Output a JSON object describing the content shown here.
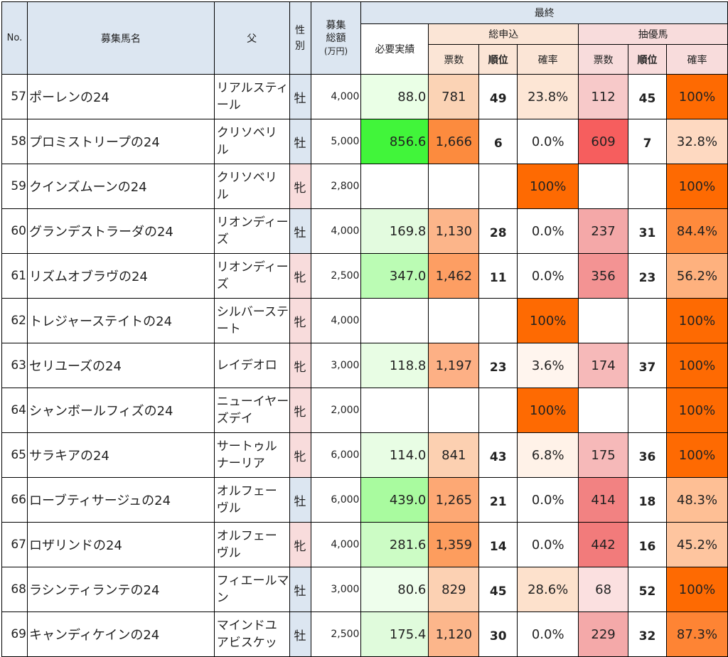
{
  "header": {
    "no": "No.",
    "horse_name": "募集馬名",
    "sire": "父",
    "sex": "性別",
    "total_line1": "募集",
    "total_line2": "総額",
    "total_unit": "(万円)",
    "final": "最終",
    "required": "必要実績",
    "apply_group": "総申込",
    "lottery_group": "抽優馬",
    "votes": "票数",
    "rank": "順位",
    "prob": "確率"
  },
  "rows": [
    {
      "no": "57",
      "name": "ポーレンの24",
      "sire": "リアルスティール",
      "sex": "牡",
      "sex_type": "m",
      "amount": "4,000",
      "required": "88.0",
      "required_bg": "#eaffe6",
      "votes": "781",
      "votes_bg": "#fbd3b5",
      "rank": "49",
      "prob": "23.8%",
      "prob_bg": "#fde6d5",
      "l_votes": "112",
      "l_votes_bg": "#f7c9c9",
      "l_rank": "45",
      "l_prob": "100%",
      "l_prob_bg": "#fe6a02"
    },
    {
      "no": "58",
      "name": "プロミストリープの24",
      "sire": "クリソベリル",
      "sex": "牡",
      "sex_type": "m",
      "amount": "5,000",
      "required": "856.6",
      "required_bg": "#41f53a",
      "votes": "1,666",
      "votes_bg": "#fc8b3e",
      "rank": "6",
      "prob": "0.0%",
      "prob_bg": "#ffffff",
      "l_votes": "609",
      "l_votes_bg": "#f65e5e",
      "l_rank": "7",
      "l_prob": "32.8%",
      "l_prob_bg": "#fed9c1"
    },
    {
      "no": "59",
      "name": "クインズムーンの24",
      "sire": "クリソベリル",
      "sex": "牝",
      "sex_type": "f",
      "amount": "2,800",
      "required": "",
      "required_bg": "#ffffff",
      "votes": "",
      "votes_bg": "#ffffff",
      "rank": "",
      "prob": "100%",
      "prob_bg": "#fe6a02",
      "l_votes": "",
      "l_votes_bg": "#ffffff",
      "l_rank": "",
      "l_prob": "100%",
      "l_prob_bg": "#fe6a02"
    },
    {
      "no": "60",
      "name": "グランデストラーダの24",
      "sire": "リオンディーズ",
      "sex": "牡",
      "sex_type": "m",
      "amount": "4,000",
      "required": "169.8",
      "required_bg": "#e3fbdf",
      "votes": "1,130",
      "votes_bg": "#fcb58a",
      "rank": "28",
      "prob": "0.0%",
      "prob_bg": "#ffffff",
      "l_votes": "237",
      "l_votes_bg": "#f4a8a8",
      "l_rank": "31",
      "l_prob": "84.4%",
      "l_prob_bg": "#fe8a3c"
    },
    {
      "no": "61",
      "name": "リズムオブラヴの24",
      "sire": "リオンディーズ",
      "sex": "牝",
      "sex_type": "f",
      "amount": "2,500",
      "required": "347.0",
      "required_bg": "#bbfcb4",
      "votes": "1,462",
      "votes_bg": "#fd9e63",
      "rank": "11",
      "prob": "0.0%",
      "prob_bg": "#ffffff",
      "l_votes": "356",
      "l_votes_bg": "#f39393",
      "l_rank": "23",
      "l_prob": "56.2%",
      "l_prob_bg": "#feb17e"
    },
    {
      "no": "62",
      "name": "トレジャーステイトの24",
      "sire": "シルバーステート",
      "sex": "牝",
      "sex_type": "f",
      "amount": "4,000",
      "required": "",
      "required_bg": "#ffffff",
      "votes": "",
      "votes_bg": "#ffffff",
      "rank": "",
      "prob": "100%",
      "prob_bg": "#fe6a02",
      "l_votes": "",
      "l_votes_bg": "#ffffff",
      "l_rank": "",
      "l_prob": "100%",
      "l_prob_bg": "#fe6a02"
    },
    {
      "no": "63",
      "name": "セリユーズの24",
      "sire": "レイデオロ",
      "sex": "牝",
      "sex_type": "f",
      "amount": "3,000",
      "required": "118.8",
      "required_bg": "#e8fde4",
      "votes": "1,197",
      "votes_bg": "#fdb085",
      "rank": "23",
      "prob": "3.6%",
      "prob_bg": "#fff5ee",
      "l_votes": "174",
      "l_votes_bg": "#f6b9b9",
      "l_rank": "37",
      "l_prob": "100%",
      "l_prob_bg": "#fe6a02"
    },
    {
      "no": "64",
      "name": "シャンボールフィズの24",
      "sire": "ニューイヤーズデイ",
      "sex": "牝",
      "sex_type": "f",
      "amount": "2,000",
      "required": "",
      "required_bg": "#ffffff",
      "votes": "",
      "votes_bg": "#ffffff",
      "rank": "",
      "prob": "100%",
      "prob_bg": "#fe6a02",
      "l_votes": "",
      "l_votes_bg": "#ffffff",
      "l_rank": "",
      "l_prob": "100%",
      "l_prob_bg": "#fe6a02"
    },
    {
      "no": "65",
      "name": "サラキアの24",
      "sire": "サートゥルナーリア",
      "sex": "牝",
      "sex_type": "f",
      "amount": "6,000",
      "required": "114.0",
      "required_bg": "#e8fde4",
      "votes": "841",
      "votes_bg": "#fcd0b1",
      "rank": "43",
      "prob": "6.8%",
      "prob_bg": "#fff2e8",
      "l_votes": "175",
      "l_votes_bg": "#f6b9b9",
      "l_rank": "36",
      "l_prob": "100%",
      "l_prob_bg": "#fe6a02"
    },
    {
      "no": "66",
      "name": "ローブティサージュの24",
      "sire": "オルフェーヴル",
      "sex": "牡",
      "sex_type": "m",
      "amount": "6,000",
      "required": "439.0",
      "required_bg": "#a9fb9f",
      "votes": "1,265",
      "votes_bg": "#fda874",
      "rank": "21",
      "prob": "0.0%",
      "prob_bg": "#ffffff",
      "l_votes": "414",
      "l_votes_bg": "#f28282",
      "l_rank": "18",
      "l_prob": "48.3%",
      "l_prob_bg": "#febf95"
    },
    {
      "no": "67",
      "name": "ロザリンドの24",
      "sire": "オルフェーヴル",
      "sex": "牝",
      "sex_type": "f",
      "amount": "4,000",
      "required": "281.6",
      "required_bg": "#ccfcc5",
      "votes": "1,359",
      "votes_bg": "#fd9d5e",
      "rank": "14",
      "prob": "0.0%",
      "prob_bg": "#ffffff",
      "l_votes": "442",
      "l_votes_bg": "#f27b7b",
      "l_rank": "16",
      "l_prob": "45.2%",
      "l_prob_bg": "#fec59f"
    },
    {
      "no": "68",
      "name": "ラシンティランテの24",
      "sire": "フィエールマン",
      "sex": "牡",
      "sex_type": "m",
      "amount": "3,000",
      "required": "80.6",
      "required_bg": "#eefeec",
      "votes": "829",
      "votes_bg": "#fcd1b3",
      "rank": "45",
      "prob": "28.6%",
      "prob_bg": "#fde1cc",
      "l_votes": "68",
      "l_votes_bg": "#fbe0e0",
      "l_rank": "52",
      "l_prob": "100%",
      "l_prob_bg": "#fe6a02"
    },
    {
      "no": "69",
      "name": "キャンディケインの24",
      "sire": "マインドユアビスケッ",
      "sex": "牡",
      "sex_type": "m",
      "amount": "2,500",
      "required": "175.4",
      "required_bg": "#e0fbdc",
      "votes": "1,120",
      "votes_bg": "#fcb68b",
      "rank": "30",
      "prob": "0.0%",
      "prob_bg": "#ffffff",
      "l_votes": "229",
      "l_votes_bg": "#f4a9a9",
      "l_rank": "32",
      "l_prob": "87.3%",
      "l_prob_bg": "#fe8434"
    }
  ]
}
